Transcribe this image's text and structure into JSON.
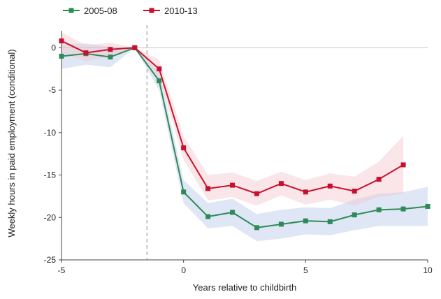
{
  "chart_data": {
    "type": "line",
    "title": "",
    "xlabel": "Years relative to childbirth",
    "ylabel": "Weekly hours in paid employment (conditional)",
    "xlim": [
      -5,
      10
    ],
    "ylim": [
      -25,
      2
    ],
    "x_ticks": [
      -5,
      0,
      5,
      10
    ],
    "y_ticks": [
      0,
      -5,
      -10,
      -15,
      -20,
      -25
    ],
    "x_tick_labels": [
      "-5",
      "0",
      "5",
      "10"
    ],
    "y_tick_labels": [
      "0",
      "-5",
      "-10",
      "-15",
      "-20",
      "-25"
    ],
    "reference_lines": {
      "horizontal_y": 0,
      "vertical_dashed_x": -1.5
    },
    "legend_position": "top-left",
    "series": [
      {
        "name": "2005-08",
        "color": "#2e8b57",
        "band_color": "#b8c8e8",
        "x": [
          -5,
          -4,
          -3,
          -2,
          -1,
          0,
          1,
          2,
          3,
          4,
          5,
          6,
          7,
          8,
          9,
          10
        ],
        "y": [
          -1.0,
          -0.7,
          -1.1,
          0.0,
          -3.9,
          -17.0,
          -19.9,
          -19.4,
          -21.2,
          -20.8,
          -20.4,
          -20.5,
          -19.7,
          -19.1,
          -19.0,
          -18.7
        ],
        "lower": [
          -2.5,
          -2.0,
          -2.3,
          0.0,
          -5.0,
          -18.3,
          -21.3,
          -21.0,
          -22.8,
          -22.5,
          -22.0,
          -22.1,
          -21.5,
          -21.0,
          -21.0,
          -21.0
        ],
        "upper": [
          0.4,
          0.5,
          0.1,
          0.0,
          -2.8,
          -15.6,
          -18.3,
          -17.8,
          -19.6,
          -19.1,
          -18.8,
          -18.9,
          -17.9,
          -17.2,
          -17.0,
          -16.4
        ]
      },
      {
        "name": "2010-13",
        "color": "#c8102e",
        "band_color": "#f4c7cf",
        "x": [
          -5,
          -4,
          -3,
          -2,
          -1,
          0,
          1,
          2,
          3,
          4,
          5,
          6,
          7,
          8,
          9
        ],
        "y": [
          0.8,
          -0.6,
          -0.2,
          0.0,
          -2.5,
          -11.8,
          -16.6,
          -16.2,
          -17.2,
          -16.0,
          -17.0,
          -16.3,
          -16.9,
          -15.5,
          -13.8
        ],
        "lower": [
          -0.6,
          -1.6,
          -1.1,
          0.0,
          -3.6,
          -13.2,
          -18.0,
          -17.6,
          -18.6,
          -17.4,
          -18.5,
          -17.9,
          -18.6,
          -17.6,
          -17.2
        ],
        "upper": [
          1.8,
          0.3,
          0.6,
          0.0,
          -1.4,
          -10.4,
          -15.0,
          -14.7,
          -15.7,
          -14.6,
          -15.6,
          -14.8,
          -15.2,
          -13.4,
          -10.4
        ]
      }
    ]
  }
}
